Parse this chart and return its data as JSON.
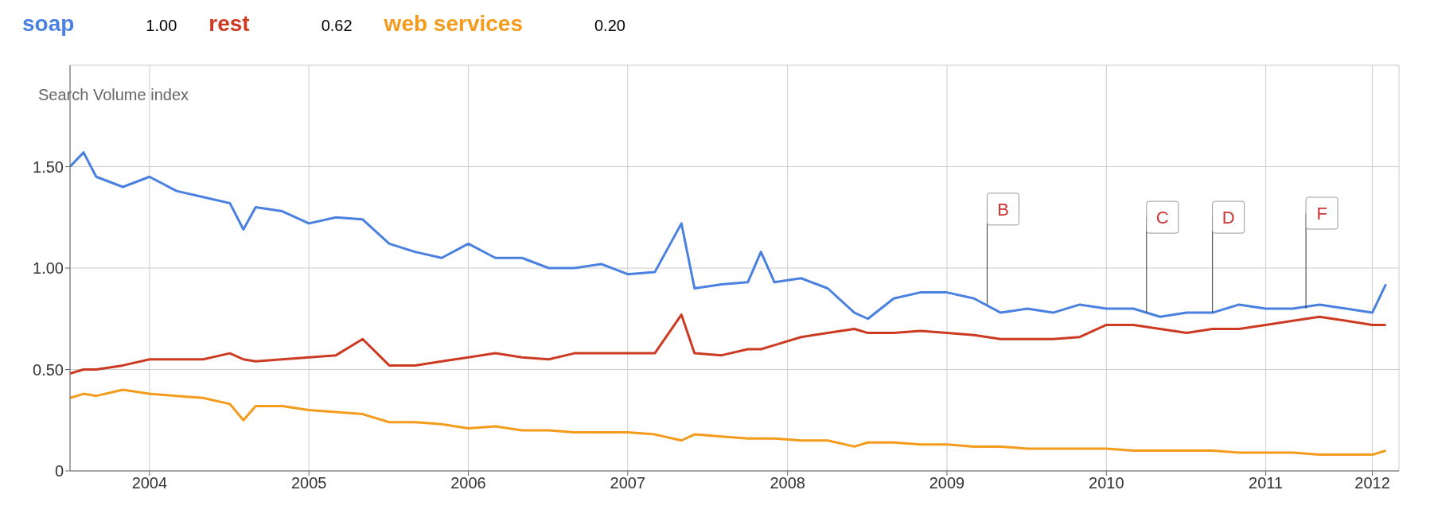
{
  "chart_data": {
    "type": "line",
    "ylabel": "Search Volume index",
    "x": [
      "2004-01",
      "2004-02",
      "2004-03",
      "2004-05",
      "2004-07",
      "2004-09",
      "2004-11",
      "2005-01",
      "2005-02",
      "2005-03",
      "2005-05",
      "2005-07",
      "2005-09",
      "2005-11",
      "2006-01",
      "2006-03",
      "2006-05",
      "2006-07",
      "2006-09",
      "2006-11",
      "2007-01",
      "2007-03",
      "2007-05",
      "2007-07",
      "2007-09",
      "2007-11",
      "2007-12",
      "2008-02",
      "2008-04",
      "2008-05",
      "2008-06",
      "2008-08",
      "2008-10",
      "2008-12",
      "2009-01",
      "2009-03",
      "2009-05",
      "2009-07",
      "2009-09",
      "2009-11",
      "2010-01",
      "2010-03",
      "2010-05",
      "2010-07",
      "2010-09",
      "2010-11",
      "2011-01",
      "2011-03",
      "2011-05",
      "2011-07",
      "2011-09",
      "2011-11",
      "2012-01",
      "2012-03",
      "2012-04"
    ],
    "series": [
      {
        "name": "soap",
        "color": "#4a80e0",
        "values": [
          1.5,
          1.57,
          1.45,
          1.4,
          1.45,
          1.38,
          1.35,
          1.32,
          1.19,
          1.3,
          1.28,
          1.22,
          1.25,
          1.24,
          1.12,
          1.08,
          1.05,
          1.12,
          1.05,
          1.05,
          1.0,
          1.0,
          1.02,
          0.97,
          0.98,
          1.22,
          0.9,
          0.92,
          0.93,
          1.08,
          0.93,
          0.95,
          0.9,
          0.78,
          0.75,
          0.85,
          0.88,
          0.88,
          0.85,
          0.78,
          0.8,
          0.78,
          0.82,
          0.8,
          0.8,
          0.76,
          0.78,
          0.78,
          0.82,
          0.8,
          0.8,
          0.82,
          0.8,
          0.78,
          0.92
        ]
      },
      {
        "name": "rest",
        "color": "#cc3a22",
        "values": [
          0.48,
          0.5,
          0.5,
          0.52,
          0.55,
          0.55,
          0.55,
          0.58,
          0.55,
          0.54,
          0.55,
          0.56,
          0.57,
          0.65,
          0.52,
          0.52,
          0.54,
          0.56,
          0.58,
          0.56,
          0.55,
          0.58,
          0.58,
          0.58,
          0.58,
          0.77,
          0.58,
          0.57,
          0.6,
          0.6,
          0.62,
          0.66,
          0.68,
          0.7,
          0.68,
          0.68,
          0.69,
          0.68,
          0.67,
          0.65,
          0.65,
          0.65,
          0.66,
          0.72,
          0.72,
          0.7,
          0.68,
          0.7,
          0.7,
          0.72,
          0.74,
          0.76,
          0.74,
          0.72,
          0.72
        ]
      },
      {
        "name": "web services",
        "color": "#f59b1c",
        "values": [
          0.36,
          0.38,
          0.37,
          0.4,
          0.38,
          0.37,
          0.36,
          0.33,
          0.25,
          0.32,
          0.32,
          0.3,
          0.29,
          0.28,
          0.24,
          0.24,
          0.23,
          0.21,
          0.22,
          0.2,
          0.2,
          0.19,
          0.19,
          0.19,
          0.18,
          0.15,
          0.18,
          0.17,
          0.16,
          0.16,
          0.16,
          0.15,
          0.15,
          0.12,
          0.14,
          0.14,
          0.13,
          0.13,
          0.12,
          0.12,
          0.11,
          0.11,
          0.11,
          0.11,
          0.1,
          0.1,
          0.1,
          0.1,
          0.09,
          0.09,
          0.09,
          0.08,
          0.08,
          0.08,
          0.1
        ]
      }
    ],
    "annotations": [
      "1.00",
      "0.62",
      "0.20",
      {
        "text": "B",
        "x": "2009-10",
        "y": 0.82
      },
      {
        "text": "C",
        "x": "2010-10",
        "y": 0.78
      },
      {
        "text": "D",
        "x": "2011-03",
        "y": 0.78
      },
      {
        "text": "F",
        "x": "2011-10",
        "y": 0.8
      }
    ],
    "xlim": [
      "2004-01",
      "2012-05"
    ],
    "xticks": [
      {
        "value": "2004-07",
        "label": "2004"
      },
      {
        "value": "2005-07",
        "label": "2005"
      },
      {
        "value": "2006-07",
        "label": "2006"
      },
      {
        "value": "2007-07",
        "label": "2007"
      },
      {
        "value": "2008-07",
        "label": "2008"
      },
      {
        "value": "2009-07",
        "label": "2009"
      },
      {
        "value": "2010-07",
        "label": "2010"
      },
      {
        "value": "2011-07",
        "label": "2011"
      },
      {
        "value": "2012-03",
        "label": "2012"
      }
    ],
    "ylim": [
      0,
      2
    ],
    "yticks": [
      {
        "value": 0,
        "label": "0"
      },
      {
        "value": 0.5,
        "label": "0.50"
      },
      {
        "value": 1,
        "label": "1.00"
      },
      {
        "value": 1.5,
        "label": "1.50"
      }
    ],
    "grid": true,
    "legend": "top left",
    "marker": "none",
    "line_style": "solid"
  }
}
